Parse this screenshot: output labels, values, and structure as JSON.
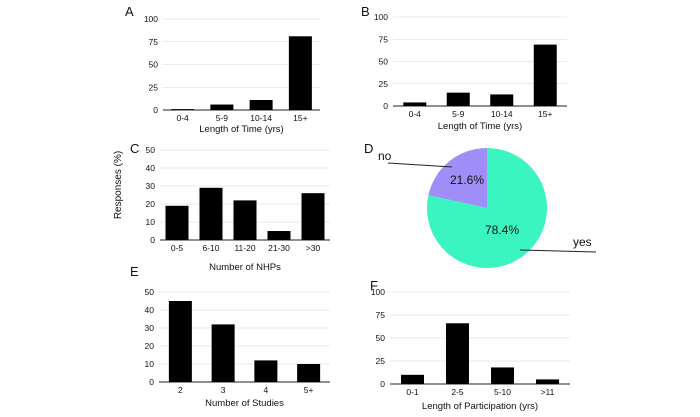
{
  "figure": {
    "shared_ylabel": "Responses (%)"
  },
  "chart_data": [
    {
      "id": "A",
      "panel": "A",
      "type": "bar",
      "categories": [
        "0-4",
        "5-9",
        "10-14",
        "15+"
      ],
      "values": [
        1,
        6,
        11,
        81
      ],
      "xlabel": "Length of Time (yrs)",
      "ylabel": "Responses (%)",
      "ylim": [
        0,
        100
      ],
      "yticks": [
        0,
        25,
        50,
        75,
        100
      ],
      "grid": true,
      "color": "#000000"
    },
    {
      "id": "B",
      "panel": "B",
      "type": "bar",
      "categories": [
        "0-4",
        "5-9",
        "10-14",
        "15+"
      ],
      "values": [
        4,
        15,
        13,
        69
      ],
      "xlabel": "Length of Time (yrs)",
      "ylabel": "Responses (%)",
      "ylim": [
        0,
        100
      ],
      "yticks": [
        0,
        25,
        50,
        75,
        100
      ],
      "grid": true,
      "color": "#000000"
    },
    {
      "id": "C",
      "panel": "C",
      "type": "bar",
      "categories": [
        "0-5",
        "6-10",
        "11-20",
        "21-30",
        ">30"
      ],
      "values": [
        19,
        29,
        22,
        5,
        26
      ],
      "xlabel": "Number of NHPs",
      "ylabel": "Responses (%)",
      "ylim": [
        0,
        50
      ],
      "yticks": [
        0,
        10,
        20,
        30,
        40,
        50
      ],
      "grid": true,
      "color": "#000000"
    },
    {
      "id": "D",
      "panel": "D",
      "type": "pie",
      "labels": [
        "no",
        "yes"
      ],
      "values": [
        21.6,
        78.4
      ],
      "value_labels": [
        "21.6%",
        "78.4%"
      ],
      "colors": [
        "#a08ef8",
        "#3af5c0"
      ]
    },
    {
      "id": "E",
      "panel": "E",
      "type": "bar",
      "categories": [
        "2",
        "3",
        "4",
        "5+"
      ],
      "values": [
        45,
        32,
        12,
        10
      ],
      "xlabel": "Number of Studies",
      "ylabel": "Responses (%)",
      "ylim": [
        0,
        50
      ],
      "yticks": [
        0,
        10,
        20,
        30,
        40,
        50
      ],
      "grid": true,
      "color": "#000000"
    },
    {
      "id": "F",
      "panel": "F",
      "type": "bar",
      "categories": [
        "0-1",
        "2-5",
        "5-10",
        ">11"
      ],
      "values": [
        10,
        66,
        18,
        5
      ],
      "xlabel": "Length of Participation (yrs)",
      "ylabel": "Responses (%)",
      "ylim": [
        0,
        100
      ],
      "yticks": [
        0,
        25,
        50,
        75,
        100
      ],
      "grid": true,
      "color": "#000000"
    }
  ]
}
